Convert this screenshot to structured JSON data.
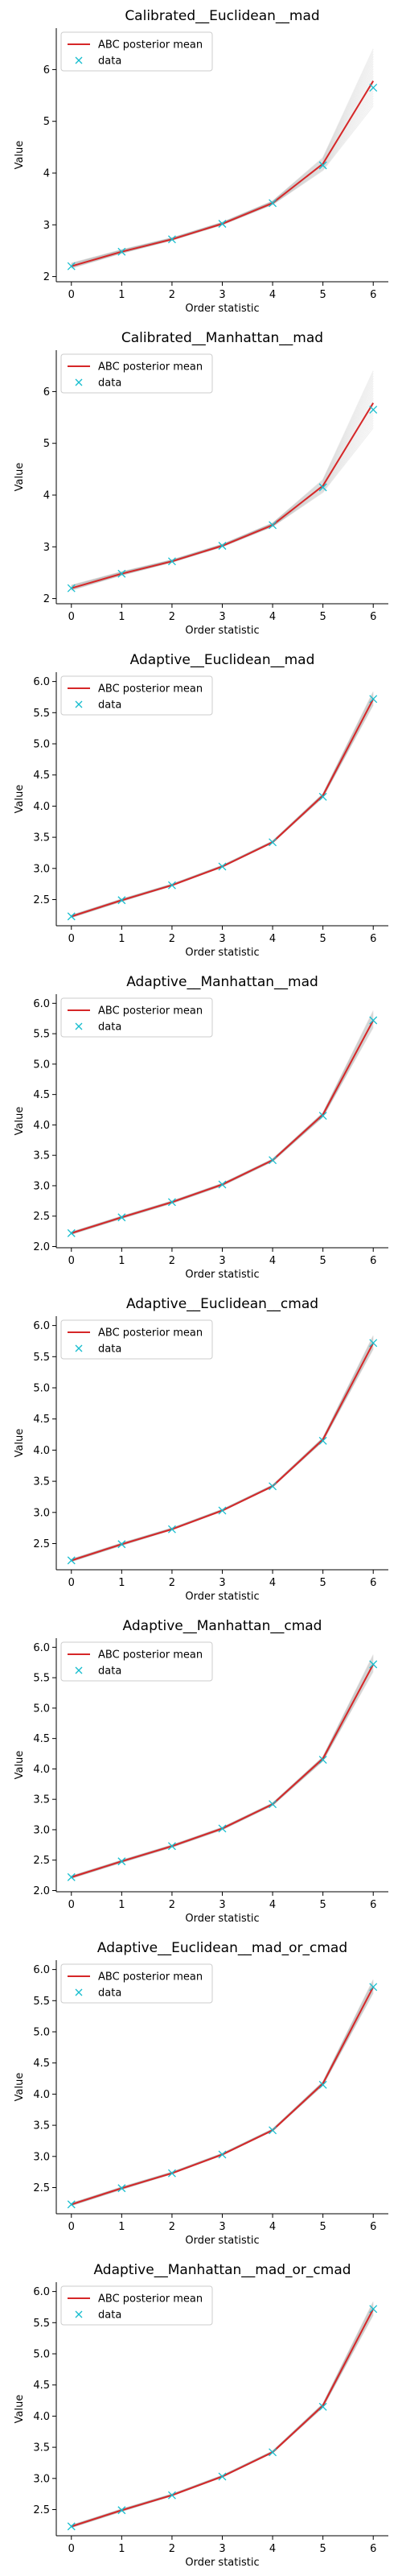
{
  "chart_data": [
    {
      "type": "line",
      "title": "Calibrated__Euclidean__mad",
      "xlabel": "Order statistic",
      "ylabel": "Value",
      "x": [
        0,
        1,
        2,
        3,
        4,
        5,
        6
      ],
      "xticks": [
        "0",
        "1",
        "2",
        "3",
        "4",
        "5",
        "6"
      ],
      "xlim": [
        -0.3,
        6.3
      ],
      "ylim": [
        1.9,
        6.8
      ],
      "yticks": [
        "2",
        "3",
        "4",
        "5",
        "6"
      ],
      "legend_position": "upper-left",
      "series": [
        {
          "name": "ABC posterior mean",
          "kind": "line",
          "color": "#d62728",
          "values": [
            2.2,
            2.48,
            2.72,
            3.02,
            3.42,
            4.18,
            5.78
          ]
        },
        {
          "name": "data",
          "kind": "marker",
          "marker": "x",
          "color": "#17becf",
          "values": [
            2.2,
            2.48,
            2.72,
            3.02,
            3.42,
            4.15,
            5.65
          ]
        }
      ],
      "posterior_band": {
        "color": "#808080",
        "lower": [
          2.16,
          2.45,
          2.7,
          3.0,
          3.39,
          4.05,
          5.3
        ],
        "upper": [
          2.26,
          2.52,
          2.75,
          3.05,
          3.46,
          4.3,
          6.4
        ]
      }
    },
    {
      "type": "line",
      "title": "Calibrated__Manhattan__mad",
      "xlabel": "Order statistic",
      "ylabel": "Value",
      "x": [
        0,
        1,
        2,
        3,
        4,
        5,
        6
      ],
      "xticks": [
        "0",
        "1",
        "2",
        "3",
        "4",
        "5",
        "6"
      ],
      "xlim": [
        -0.3,
        6.3
      ],
      "ylim": [
        1.9,
        6.8
      ],
      "yticks": [
        "2",
        "3",
        "4",
        "5",
        "6"
      ],
      "legend_position": "upper-left",
      "series": [
        {
          "name": "ABC posterior mean",
          "kind": "line",
          "color": "#d62728",
          "values": [
            2.2,
            2.48,
            2.72,
            3.02,
            3.42,
            4.18,
            5.78
          ]
        },
        {
          "name": "data",
          "kind": "marker",
          "marker": "x",
          "color": "#17becf",
          "values": [
            2.2,
            2.48,
            2.72,
            3.02,
            3.42,
            4.15,
            5.65
          ]
        }
      ],
      "posterior_band": {
        "color": "#808080",
        "lower": [
          2.16,
          2.45,
          2.7,
          3.0,
          3.39,
          4.05,
          5.3
        ],
        "upper": [
          2.26,
          2.52,
          2.75,
          3.05,
          3.46,
          4.3,
          6.4
        ]
      }
    },
    {
      "type": "line",
      "title": "Adaptive__Euclidean__mad",
      "xlabel": "Order statistic",
      "ylabel": "Value",
      "x": [
        0,
        1,
        2,
        3,
        4,
        5,
        6
      ],
      "xticks": [
        "0",
        "1",
        "2",
        "3",
        "4",
        "5",
        "6"
      ],
      "xlim": [
        -0.3,
        6.3
      ],
      "ylim": [
        2.08,
        6.15
      ],
      "yticks": [
        "2.5",
        "3.0",
        "3.5",
        "4.0",
        "4.5",
        "5.0",
        "5.5",
        "6.0"
      ],
      "legend_position": "upper-left",
      "series": [
        {
          "name": "ABC posterior mean",
          "kind": "line",
          "color": "#d62728",
          "values": [
            2.23,
            2.49,
            2.73,
            3.03,
            3.42,
            4.17,
            5.72
          ]
        },
        {
          "name": "data",
          "kind": "marker",
          "marker": "x",
          "color": "#17becf",
          "values": [
            2.23,
            2.49,
            2.73,
            3.03,
            3.42,
            4.15,
            5.72
          ]
        }
      ],
      "posterior_band": {
        "color": "#808080",
        "lower": [
          2.21,
          2.47,
          2.72,
          3.02,
          3.41,
          4.14,
          5.62
        ],
        "upper": [
          2.25,
          2.51,
          2.75,
          3.05,
          3.44,
          4.2,
          5.84
        ]
      }
    },
    {
      "type": "line",
      "title": "Adaptive__Manhattan__mad",
      "xlabel": "Order statistic",
      "ylabel": "Value",
      "x": [
        0,
        1,
        2,
        3,
        4,
        5,
        6
      ],
      "xticks": [
        "0",
        "1",
        "2",
        "3",
        "4",
        "5",
        "6"
      ],
      "xlim": [
        -0.3,
        6.3
      ],
      "ylim": [
        1.98,
        6.15
      ],
      "yticks": [
        "2.0",
        "2.5",
        "3.0",
        "3.5",
        "4.0",
        "4.5",
        "5.0",
        "5.5",
        "6.0"
      ],
      "legend_position": "upper-left",
      "series": [
        {
          "name": "ABC posterior mean",
          "kind": "line",
          "color": "#d62728",
          "values": [
            2.22,
            2.48,
            2.73,
            3.02,
            3.42,
            4.17,
            5.72
          ]
        },
        {
          "name": "data",
          "kind": "marker",
          "marker": "x",
          "color": "#17becf",
          "values": [
            2.22,
            2.48,
            2.73,
            3.02,
            3.42,
            4.15,
            5.72
          ]
        }
      ],
      "posterior_band": {
        "color": "#808080",
        "lower": [
          2.2,
          2.46,
          2.71,
          3.0,
          3.4,
          4.13,
          5.6
        ],
        "upper": [
          2.24,
          2.5,
          2.75,
          3.04,
          3.44,
          4.2,
          5.88
        ]
      }
    },
    {
      "type": "line",
      "title": "Adaptive__Euclidean__cmad",
      "xlabel": "Order statistic",
      "ylabel": "Value",
      "x": [
        0,
        1,
        2,
        3,
        4,
        5,
        6
      ],
      "xticks": [
        "0",
        "1",
        "2",
        "3",
        "4",
        "5",
        "6"
      ],
      "xlim": [
        -0.3,
        6.3
      ],
      "ylim": [
        2.08,
        6.15
      ],
      "yticks": [
        "2.5",
        "3.0",
        "3.5",
        "4.0",
        "4.5",
        "5.0",
        "5.5",
        "6.0"
      ],
      "legend_position": "upper-left",
      "series": [
        {
          "name": "ABC posterior mean",
          "kind": "line",
          "color": "#d62728",
          "values": [
            2.23,
            2.49,
            2.73,
            3.03,
            3.42,
            4.17,
            5.72
          ]
        },
        {
          "name": "data",
          "kind": "marker",
          "marker": "x",
          "color": "#17becf",
          "values": [
            2.23,
            2.49,
            2.73,
            3.03,
            3.42,
            4.15,
            5.72
          ]
        }
      ],
      "posterior_band": {
        "color": "#808080",
        "lower": [
          2.21,
          2.47,
          2.72,
          3.02,
          3.41,
          4.14,
          5.62
        ],
        "upper": [
          2.25,
          2.51,
          2.75,
          3.05,
          3.44,
          4.2,
          5.84
        ]
      }
    },
    {
      "type": "line",
      "title": "Adaptive__Manhattan__cmad",
      "xlabel": "Order statistic",
      "ylabel": "Value",
      "x": [
        0,
        1,
        2,
        3,
        4,
        5,
        6
      ],
      "xticks": [
        "0",
        "1",
        "2",
        "3",
        "4",
        "5",
        "6"
      ],
      "xlim": [
        -0.3,
        6.3
      ],
      "ylim": [
        1.98,
        6.15
      ],
      "yticks": [
        "2.0",
        "2.5",
        "3.0",
        "3.5",
        "4.0",
        "4.5",
        "5.0",
        "5.5",
        "6.0"
      ],
      "legend_position": "upper-left",
      "series": [
        {
          "name": "ABC posterior mean",
          "kind": "line",
          "color": "#d62728",
          "values": [
            2.22,
            2.48,
            2.73,
            3.02,
            3.42,
            4.17,
            5.72
          ]
        },
        {
          "name": "data",
          "kind": "marker",
          "marker": "x",
          "color": "#17becf",
          "values": [
            2.22,
            2.48,
            2.73,
            3.02,
            3.42,
            4.15,
            5.72
          ]
        }
      ],
      "posterior_band": {
        "color": "#808080",
        "lower": [
          2.2,
          2.46,
          2.71,
          3.0,
          3.4,
          4.13,
          5.6
        ],
        "upper": [
          2.24,
          2.5,
          2.75,
          3.04,
          3.44,
          4.2,
          5.88
        ]
      }
    },
    {
      "type": "line",
      "title": "Adaptive__Euclidean__mad_or_cmad",
      "xlabel": "Order statistic",
      "ylabel": "Value",
      "x": [
        0,
        1,
        2,
        3,
        4,
        5,
        6
      ],
      "xticks": [
        "0",
        "1",
        "2",
        "3",
        "4",
        "5",
        "6"
      ],
      "xlim": [
        -0.3,
        6.3
      ],
      "ylim": [
        2.08,
        6.15
      ],
      "yticks": [
        "2.5",
        "3.0",
        "3.5",
        "4.0",
        "4.5",
        "5.0",
        "5.5",
        "6.0"
      ],
      "legend_position": "upper-left",
      "series": [
        {
          "name": "ABC posterior mean",
          "kind": "line",
          "color": "#d62728",
          "values": [
            2.23,
            2.49,
            2.73,
            3.03,
            3.42,
            4.17,
            5.72
          ]
        },
        {
          "name": "data",
          "kind": "marker",
          "marker": "x",
          "color": "#17becf",
          "values": [
            2.23,
            2.49,
            2.73,
            3.03,
            3.42,
            4.15,
            5.72
          ]
        }
      ],
      "posterior_band": {
        "color": "#808080",
        "lower": [
          2.21,
          2.47,
          2.72,
          3.02,
          3.41,
          4.14,
          5.62
        ],
        "upper": [
          2.25,
          2.51,
          2.75,
          3.05,
          3.44,
          4.2,
          5.84
        ]
      }
    },
    {
      "type": "line",
      "title": "Adaptive__Manhattan__mad_or_cmad",
      "xlabel": "Order statistic",
      "ylabel": "Value",
      "x": [
        0,
        1,
        2,
        3,
        4,
        5,
        6
      ],
      "xticks": [
        "0",
        "1",
        "2",
        "3",
        "4",
        "5",
        "6"
      ],
      "xlim": [
        -0.3,
        6.3
      ],
      "ylim": [
        2.08,
        6.15
      ],
      "yticks": [
        "2.5",
        "3.0",
        "3.5",
        "4.0",
        "4.5",
        "5.0",
        "5.5",
        "6.0"
      ],
      "legend_position": "upper-left",
      "series": [
        {
          "name": "ABC posterior mean",
          "kind": "line",
          "color": "#d62728",
          "values": [
            2.23,
            2.49,
            2.73,
            3.03,
            3.42,
            4.17,
            5.72
          ]
        },
        {
          "name": "data",
          "kind": "marker",
          "marker": "x",
          "color": "#17becf",
          "values": [
            2.23,
            2.49,
            2.73,
            3.03,
            3.42,
            4.15,
            5.72
          ]
        }
      ],
      "posterior_band": {
        "color": "#808080",
        "lower": [
          2.21,
          2.47,
          2.72,
          3.02,
          3.41,
          4.14,
          5.62
        ],
        "upper": [
          2.25,
          2.51,
          2.75,
          3.05,
          3.44,
          4.2,
          5.84
        ]
      }
    }
  ]
}
